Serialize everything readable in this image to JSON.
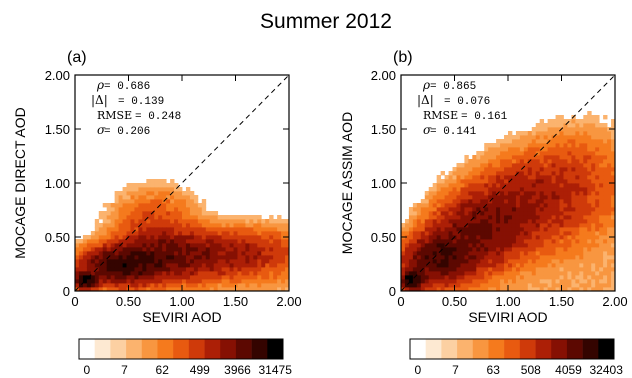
{
  "figure": {
    "title": "Summer 2012"
  },
  "colors": {
    "scale": [
      "#ffffff",
      "#fde9d2",
      "#fcd0a2",
      "#fbb36e",
      "#f89640",
      "#f57a1d",
      "#e85a10",
      "#cf3a0a",
      "#ac1f06",
      "#861003",
      "#5c0801",
      "#340400",
      "#000000"
    ],
    "diagonal": "#000000"
  },
  "chart_data": [
    {
      "type": "heatmap",
      "panel_label": "(a)",
      "xlabel": "SEVIRI AOD",
      "ylabel": "MOCAGE DIRECT AOD",
      "xlim": [
        0,
        2.0
      ],
      "ylim": [
        0,
        2.0
      ],
      "x_ticks": [
        "0",
        "0.50",
        "1.00",
        "1.50",
        "2.00"
      ],
      "y_ticks": [
        "0",
        "0.50",
        "1.00",
        "1.50",
        "2.00"
      ],
      "one_to_one_line": true,
      "stats": {
        "rho": {
          "symbol": "ρ",
          "value": "0.686"
        },
        "delta": {
          "symbol": "|Δ|",
          "value": "0.139"
        },
        "rmse": {
          "symbol": "RMSE",
          "value": "0.248"
        },
        "sigma": {
          "symbol": "σ",
          "value": "0.206"
        }
      },
      "colorbar": {
        "labels": [
          "0",
          "7",
          "62",
          "499",
          "3966",
          "31475"
        ],
        "max": 31475
      },
      "density_model": {
        "cores": [
          {
            "x": 0.1,
            "y": 0.1,
            "sx": 0.06,
            "sy": 0.04,
            "w": 1.0
          },
          {
            "x": 0.42,
            "y": 0.24,
            "sx": 0.22,
            "sy": 0.1,
            "w": 0.55
          },
          {
            "x": 0.85,
            "y": 0.32,
            "sx": 0.3,
            "sy": 0.13,
            "w": 0.32
          },
          {
            "x": 1.5,
            "y": 0.35,
            "sx": 0.35,
            "sy": 0.13,
            "w": 0.2
          },
          {
            "x": 0.75,
            "y": 0.58,
            "sx": 0.25,
            "sy": 0.22,
            "w": 0.1
          }
        ],
        "halo": 0.32
      }
    },
    {
      "type": "heatmap",
      "panel_label": "(b)",
      "xlabel": "SEVIRI AOD",
      "ylabel": "MOCAGE ASSIM AOD",
      "xlim": [
        0,
        2.0
      ],
      "ylim": [
        0,
        2.0
      ],
      "x_ticks": [
        "0",
        "0.50",
        "1.00",
        "1.50",
        "2.00"
      ],
      "y_ticks": [
        "0",
        "0.50",
        "1.00",
        "1.50",
        "2.00"
      ],
      "one_to_one_line": true,
      "stats": {
        "rho": {
          "symbol": "ρ",
          "value": "0.865"
        },
        "delta": {
          "symbol": "|Δ|",
          "value": "0.076"
        },
        "rmse": {
          "symbol": "RMSE",
          "value": "0.161"
        },
        "sigma": {
          "symbol": "σ",
          "value": "0.141"
        }
      },
      "colorbar": {
        "labels": [
          "0",
          "7",
          "63",
          "508",
          "4059",
          "32403"
        ],
        "max": 32403
      },
      "density_model": {
        "cores": [
          {
            "x": 0.1,
            "y": 0.1,
            "sx": 0.06,
            "sy": 0.05,
            "w": 1.0
          },
          {
            "x": 0.35,
            "y": 0.3,
            "sx": 0.2,
            "sy": 0.14,
            "w": 0.5
          },
          {
            "x": 0.7,
            "y": 0.55,
            "sx": 0.25,
            "sy": 0.2,
            "w": 0.32
          },
          {
            "x": 1.1,
            "y": 0.8,
            "sx": 0.3,
            "sy": 0.25,
            "w": 0.2
          },
          {
            "x": 1.6,
            "y": 1.0,
            "sx": 0.3,
            "sy": 0.3,
            "w": 0.1
          }
        ],
        "halo": 0.32
      }
    }
  ]
}
